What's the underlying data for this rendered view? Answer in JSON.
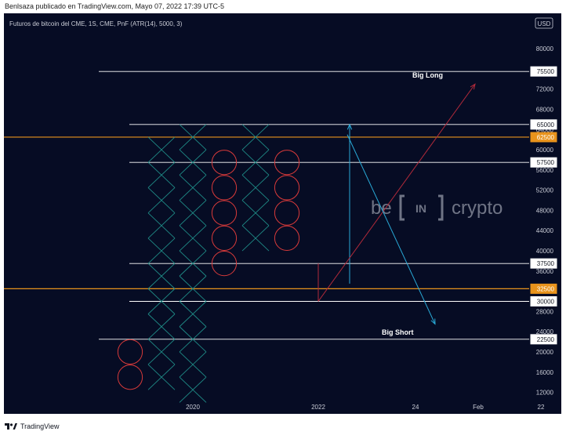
{
  "header": {
    "publisher_caption": "Benlsaza publicado en TradingView.com, Mayo 07, 2022 17:39 UTC-5"
  },
  "footer": {
    "brand": "TradingView"
  },
  "colors": {
    "background": "#060c24",
    "cross": "#1f8b86",
    "circle": "#d83a3a",
    "level_line": "#ffffff",
    "orange_line": "#e8931c",
    "blue_arrow": "#29a9d6",
    "red_arrow": "#b02a3a",
    "axis_text": "#c9ccd6"
  },
  "watermark": {
    "left": "be",
    "middle": "IN",
    "right": "crypto"
  },
  "chart_data": {
    "type": "point-and-figure",
    "title": "Futuros de bitcoin del CME, 1S, CME, PnF (ATR(14), 5000, 3)",
    "currency": "USD",
    "xlabel": "",
    "ylabel": "",
    "box_size": 5000,
    "ylim": [
      11000,
      87000
    ],
    "y_ticks": [
      12000,
      16000,
      20000,
      24000,
      28000,
      36000,
      40000,
      44000,
      48000,
      52000,
      56000,
      60000,
      64000,
      68000,
      72000,
      80000
    ],
    "x_ticks": [
      {
        "label": "2020",
        "col": 2
      },
      {
        "label": "2022",
        "col": 6
      },
      {
        "label": "24",
        "col": 9.1
      },
      {
        "label": "Feb",
        "col": 11.1
      },
      {
        "label": "22",
        "col": 13.1
      }
    ],
    "columns": [
      {
        "col": 0,
        "type": "O",
        "boxes": [
          15000,
          20000
        ]
      },
      {
        "col": 1,
        "type": "X",
        "boxes": [
          15000,
          20000,
          25000,
          30000,
          35000,
          40000,
          45000,
          50000,
          55000,
          60000
        ]
      },
      {
        "col": 2,
        "type": "X",
        "boxes": [
          12500,
          17500,
          22500,
          27500,
          32500,
          37500,
          42500,
          47500,
          52500,
          57500,
          62500
        ]
      },
      {
        "col": 3,
        "type": "O",
        "boxes": [
          37500,
          42500,
          47500,
          52500,
          57500
        ]
      },
      {
        "col": 4,
        "type": "X",
        "boxes": [
          42500,
          47500,
          52500,
          57500,
          62500
        ]
      },
      {
        "col": 5,
        "type": "O",
        "boxes": [
          42500,
          47500,
          52500,
          57500
        ]
      }
    ],
    "levels": [
      {
        "value": 75500,
        "kind": "white"
      },
      {
        "value": 65000,
        "kind": "white"
      },
      {
        "value": 62500,
        "kind": "orange"
      },
      {
        "value": 57500,
        "kind": "white"
      },
      {
        "value": 37500,
        "kind": "white"
      },
      {
        "value": 32500,
        "kind": "orange"
      },
      {
        "value": 30000,
        "kind": "white"
      },
      {
        "value": 22500,
        "kind": "white"
      }
    ],
    "annotations": [
      {
        "text": "Big Long",
        "arrow_from": {
          "col": 6,
          "value": 32500
        },
        "arrow_to": {
          "col": 11,
          "value": 73000
        }
      },
      {
        "text": "Big Short",
        "arrow_from": {
          "col": 7,
          "value": 63000
        },
        "arrow_to": {
          "col": 9.8,
          "value": 25500
        }
      }
    ],
    "measure_lines": [
      {
        "col": 7.1,
        "from": 33500,
        "to": 65000
      },
      {
        "col": 6,
        "from": 30000,
        "to": 37500
      }
    ]
  }
}
